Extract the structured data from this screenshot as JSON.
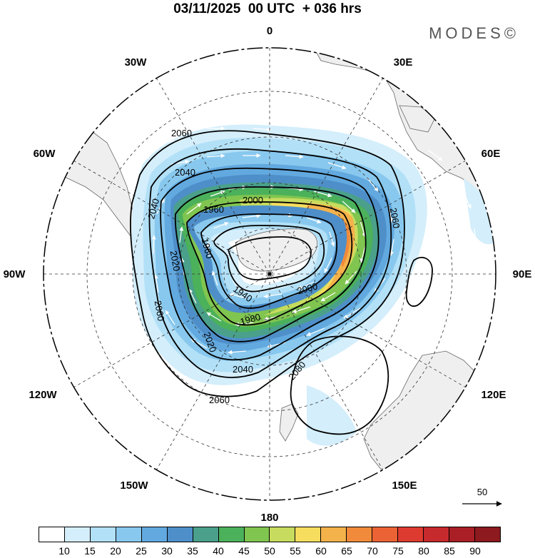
{
  "title": "03/11/2025  00 UTC  + 036 hrs",
  "brand": "MODES©",
  "longitude_labels": {
    "l0": "0",
    "l30E": "30E",
    "l60E": "60E",
    "l90E": "90E",
    "l120E": "120E",
    "l150E": "150E",
    "l180": "180",
    "l150W": "150W",
    "l120W": "120W",
    "l90W": "90W",
    "l60W": "60W",
    "l30W": "30W"
  },
  "contour_labels": {
    "c2060_a": "2060",
    "c2040_a": "2040",
    "c2040_b": "2040",
    "c2060_b": "2060",
    "c2000_a": "2000",
    "c1960_a": "1960",
    "c1960_b": "1960",
    "c2020_a": "2020",
    "c1940": "1940",
    "c2000_b": "2000",
    "c1980": "1980",
    "c2020_b": "2020",
    "c2040_c": "2040",
    "c2080": "2080",
    "c2060_c": "2060",
    "c2060_d": "2060"
  },
  "vector_reference": {
    "label": "50"
  },
  "colorbar": {
    "colors": [
      "#ffffff",
      "#d4eefb",
      "#b2e0f7",
      "#88c8ee",
      "#62a9df",
      "#4e8fc9",
      "#4aa08a",
      "#4bb15a",
      "#80c550",
      "#c7dc5e",
      "#f6dd5e",
      "#f4b24a",
      "#f18a3a",
      "#eb6334",
      "#de3b30",
      "#c62a2c",
      "#a91f25",
      "#8c1a1e"
    ],
    "tick_labels": [
      "10",
      "15",
      "20",
      "25",
      "30",
      "35",
      "40",
      "45",
      "50",
      "55",
      "60",
      "65",
      "70",
      "75",
      "80",
      "85",
      "90"
    ]
  }
}
